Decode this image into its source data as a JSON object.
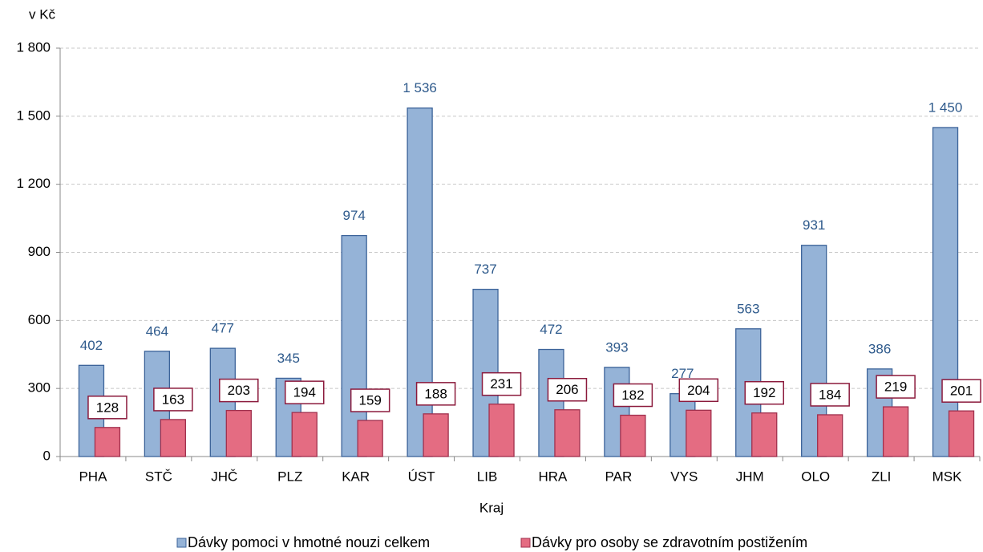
{
  "chart_data": {
    "type": "bar",
    "y_label": "v Kč",
    "x_label": "Kraj",
    "categories": [
      "PHA",
      "STČ",
      "JHČ",
      "PLZ",
      "KAR",
      "ÚST",
      "LIB",
      "HRA",
      "PAR",
      "VYS",
      "JHM",
      "OLO",
      "ZLI",
      "MSK"
    ],
    "series": [
      {
        "name": "Dávky pomoci v hmotné nouzi celkem",
        "color": "#95b3d7",
        "values": [
          402,
          464,
          477,
          345,
          974,
          1536,
          737,
          472,
          393,
          277,
          563,
          931,
          386,
          1450
        ],
        "value_labels": [
          "402",
          "464",
          "477",
          "345",
          "974",
          "1 536",
          "737",
          "472",
          "393",
          "277",
          "563",
          "931",
          "386",
          "1 450"
        ]
      },
      {
        "name": "Dávky pro osoby se zdravotním postižením",
        "color": "#e46c82",
        "values": [
          128,
          163,
          203,
          194,
          159,
          188,
          231,
          206,
          182,
          204,
          192,
          184,
          219,
          201
        ]
      }
    ],
    "ylim": [
      0,
      1800
    ],
    "yticks": [
      0,
      300,
      600,
      900,
      {
        "value": 1200,
        "label": "1 200"
      },
      {
        "value": 1500,
        "label": "1 500"
      },
      {
        "value": 1800,
        "label": "1 800"
      }
    ],
    "grid": true,
    "legend": "bottom"
  }
}
